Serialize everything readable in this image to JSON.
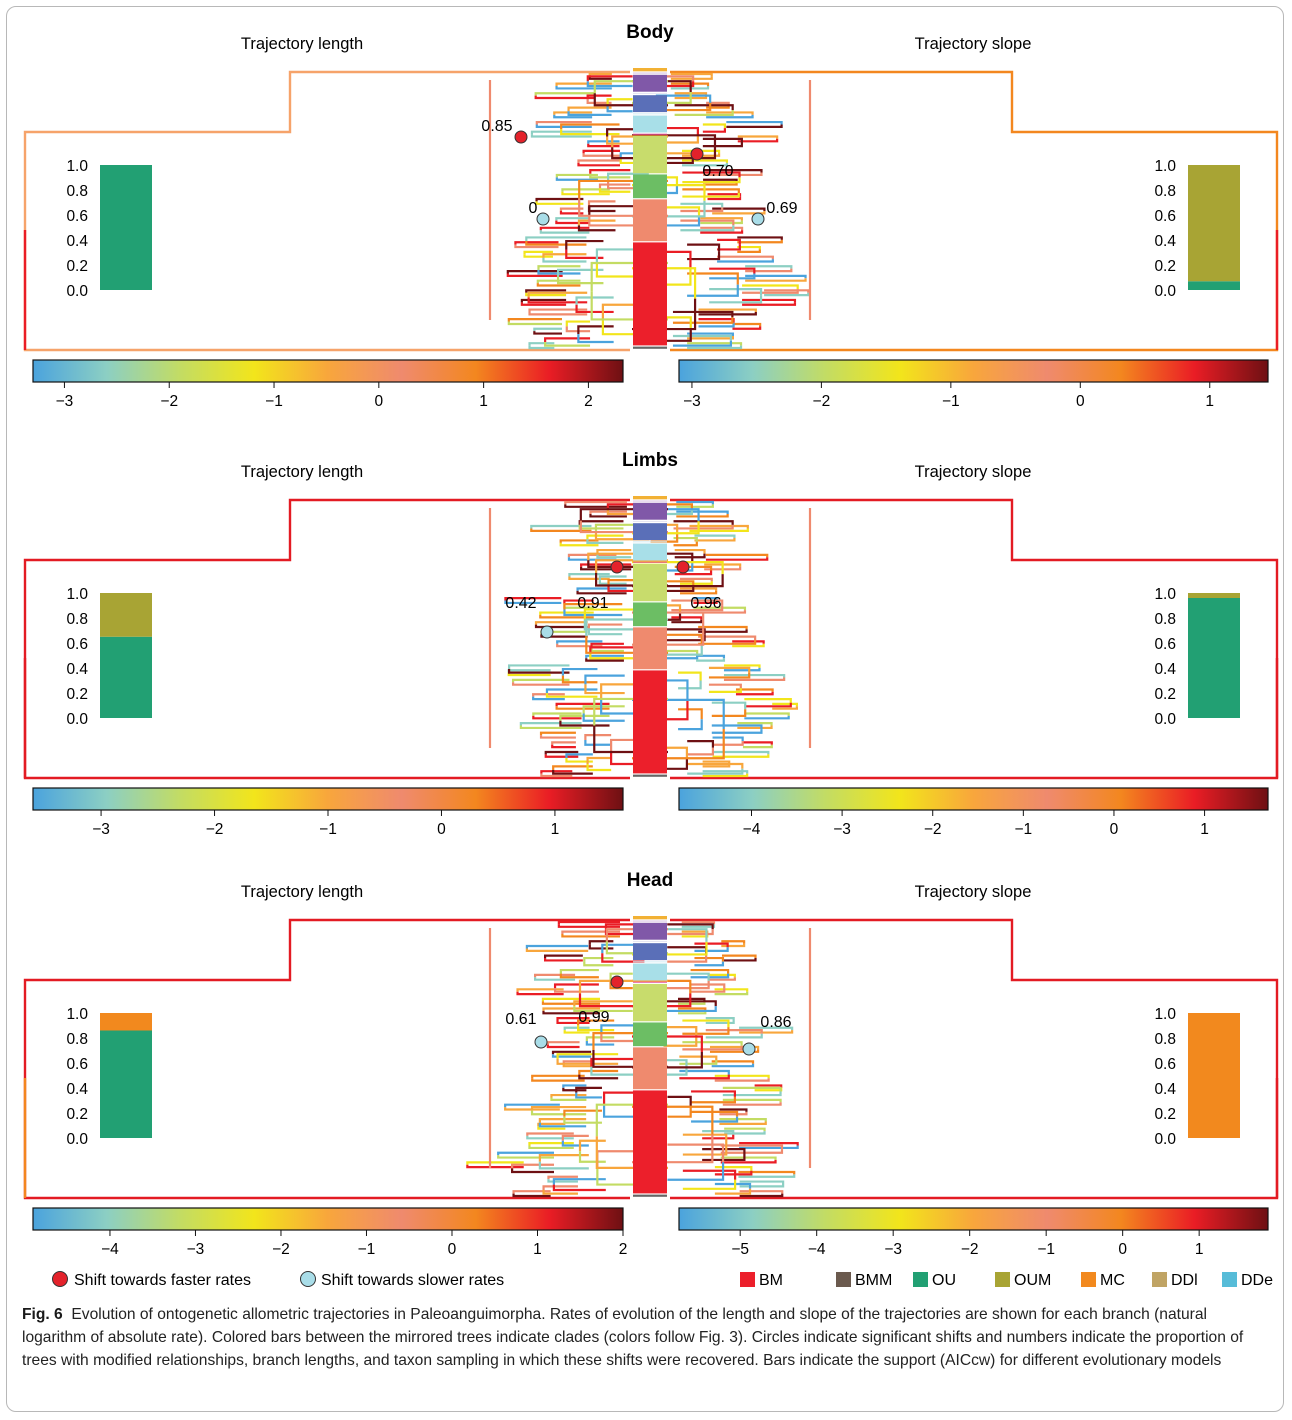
{
  "panels": [
    {
      "id": "body",
      "title": "Body",
      "left_label": "Trajectory length",
      "right_label": "Trajectory slope",
      "left_support": {
        "segments": [
          {
            "model": "OU",
            "value": 1.0
          }
        ]
      },
      "right_support": {
        "segments": [
          {
            "model": "OU",
            "value": 0.07
          },
          {
            "model": "OUM",
            "value": 0.93
          }
        ]
      },
      "left_colorbar": {
        "min": -3.3,
        "max": 2.33,
        "ticks": [
          -3,
          -2,
          -1,
          0,
          1,
          2
        ]
      },
      "right_colorbar": {
        "min": -3.1,
        "max": 1.45,
        "ticks": [
          -3,
          -2,
          -1,
          0,
          1
        ]
      },
      "shifts": [
        {
          "side": "left",
          "type": "faster",
          "label": "0.85"
        },
        {
          "side": "left",
          "type": "slower",
          "label": "0"
        },
        {
          "side": "right",
          "type": "faster",
          "label": "0.70"
        },
        {
          "side": "right",
          "type": "slower",
          "label": "0.69"
        }
      ]
    },
    {
      "id": "limbs",
      "title": "Limbs",
      "left_label": "Trajectory length",
      "right_label": "Trajectory slope",
      "left_support": {
        "segments": [
          {
            "model": "OU",
            "value": 0.65
          },
          {
            "model": "OUM",
            "value": 0.35
          }
        ]
      },
      "right_support": {
        "segments": [
          {
            "model": "OU",
            "value": 0.96
          },
          {
            "model": "OUM",
            "value": 0.04
          }
        ]
      },
      "left_colorbar": {
        "min": -3.6,
        "max": 1.6,
        "ticks": [
          -3,
          -2,
          -1,
          0,
          1
        ]
      },
      "right_colorbar": {
        "min": -4.8,
        "max": 1.7,
        "ticks": [
          -4,
          -3,
          -2,
          -1,
          0,
          1
        ]
      },
      "shifts": [
        {
          "side": "left",
          "type": "faster",
          "label": "0.91"
        },
        {
          "side": "left",
          "type": "slower",
          "label": "0.42"
        },
        {
          "side": "right",
          "type": "faster",
          "label": "0.96"
        }
      ]
    },
    {
      "id": "head",
      "title": "Head",
      "left_label": "Trajectory length",
      "right_label": "Trajectory slope",
      "left_support": {
        "segments": [
          {
            "model": "OU",
            "value": 0.86
          },
          {
            "model": "MC",
            "value": 0.14
          }
        ]
      },
      "right_support": {
        "segments": [
          {
            "model": "MC",
            "value": 1.0
          }
        ]
      },
      "left_colorbar": {
        "min": -4.9,
        "max": 2.0,
        "ticks": [
          -4,
          -3,
          -2,
          -1,
          0,
          1,
          2
        ]
      },
      "right_colorbar": {
        "min": -5.8,
        "max": 1.9,
        "ticks": [
          -5,
          -4,
          -3,
          -2,
          -1,
          0,
          1
        ]
      },
      "shifts": [
        {
          "side": "left",
          "type": "faster",
          "label": "0.99"
        },
        {
          "side": "left",
          "type": "slower",
          "label": "0.61"
        },
        {
          "side": "right",
          "type": "slower",
          "label": "0.86"
        }
      ]
    }
  ],
  "support_axis_ticks": [
    "0.0",
    "0.2",
    "0.4",
    "0.6",
    "0.8",
    "1.0"
  ],
  "clade_colors": [
    "#f2b134",
    "#d8c4e2",
    "#8058a8",
    "#e6e6f2",
    "#5a6fb8",
    "#d7eef4",
    "#a8dfe8",
    "#e4559a",
    "#c8dc6c",
    "#6cbe64",
    "#ef8a6e",
    "#ec1f2b",
    "#666666"
  ],
  "rate_colormap": [
    "#4ba3dd",
    "#8ccfc3",
    "#c3dc63",
    "#f2e51b",
    "#f8a63c",
    "#ef8a6e",
    "#f3871f",
    "#ea1d25",
    "#6e1013"
  ],
  "models": [
    {
      "name": "BM",
      "color": "#ec1f2b"
    },
    {
      "name": "BMM",
      "color": "#6b5a4e"
    },
    {
      "name": "OU",
      "color": "#22a073"
    },
    {
      "name": "OUM",
      "color": "#a8a434"
    },
    {
      "name": "MC",
      "color": "#f2891e"
    },
    {
      "name": "DDl",
      "color": "#c0a464"
    },
    {
      "name": "DDe",
      "color": "#57bcd8"
    }
  ],
  "legend": {
    "faster": "Shift towards faster rates",
    "slower": "Shift towards slower rates",
    "faster_color": "#e3222b",
    "slower_color": "#a9dde8"
  },
  "caption": {
    "label": "Fig. 6",
    "text": "Evolution of ontogenetic allometric trajectories in Paleoanguimorpha. Rates of evolution of the length and slope of the trajectories are shown for each branch (natural logarithm of absolute rate). Colored bars between the mirrored trees indicate clades (colors follow Fig. 3). Circles indicate significant shifts and numbers indicate the proportion of trees with modified relationships, branch lengths, and taxon sampling in which these shifts were recovered. Bars indicate the support (AICcw) for different evolutionary models"
  },
  "chart_data": {
    "type": "bar",
    "title": "",
    "panels": [
      "Body",
      "Limbs",
      "Head"
    ],
    "traits": [
      "Trajectory length",
      "Trajectory slope"
    ],
    "ylabel": "",
    "ylim": [
      0,
      1
    ],
    "series": [
      {
        "name": "OU",
        "values": [
          1.0,
          0.07,
          0.65,
          0.96,
          0.86,
          0.0
        ]
      },
      {
        "name": "OUM",
        "values": [
          0.0,
          0.93,
          0.35,
          0.04,
          0.0,
          0.0
        ]
      },
      {
        "name": "MC",
        "values": [
          0.0,
          0.0,
          0.0,
          0.0,
          0.14,
          1.0
        ]
      }
    ],
    "categories": [
      "Body-length",
      "Body-slope",
      "Limbs-length",
      "Limbs-slope",
      "Head-length",
      "Head-slope"
    ]
  }
}
